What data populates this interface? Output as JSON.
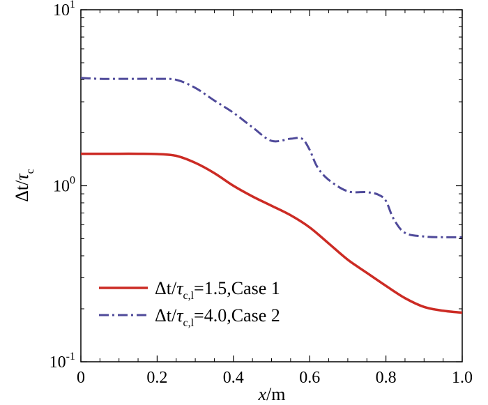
{
  "chart_data": {
    "type": "line",
    "title": "",
    "xlabel": {
      "var": "x",
      "unit": "/m"
    },
    "ylabel": {
      "num": "Δt",
      "sep": "/",
      "den": "τ",
      "den_sub": "c"
    },
    "xlim": [
      0,
      1.0
    ],
    "ylim": [
      0.1,
      10
    ],
    "yscale": "log",
    "x_ticks": [
      {
        "value": 0,
        "label": "0"
      },
      {
        "value": 0.2,
        "label": "0.2"
      },
      {
        "value": 0.4,
        "label": "0.4"
      },
      {
        "value": 0.6,
        "label": "0.6"
      },
      {
        "value": 0.8,
        "label": "0.8"
      },
      {
        "value": 1.0,
        "label": "1.0"
      }
    ],
    "y_ticks": [
      {
        "value": 0.1,
        "base": "10",
        "exp": "-1"
      },
      {
        "value": 1,
        "base": "10",
        "exp": "0"
      },
      {
        "value": 10,
        "base": "10",
        "exp": "1"
      }
    ],
    "legend_position": "bottom-left",
    "series": [
      {
        "name": "Δt/τc,l=1.5,Case 1",
        "legend": {
          "num": "Δt",
          "sep": "/",
          "den": "τ",
          "den_sub": "c,l",
          "rest": "=1.5,Case 1"
        },
        "color": "#cc2b24",
        "style": "solid",
        "points": [
          [
            0,
            1.52
          ],
          [
            0.05,
            1.52
          ],
          [
            0.1,
            1.52
          ],
          [
            0.15,
            1.52
          ],
          [
            0.2,
            1.515
          ],
          [
            0.25,
            1.48
          ],
          [
            0.3,
            1.35
          ],
          [
            0.35,
            1.18
          ],
          [
            0.4,
            1.0
          ],
          [
            0.45,
            0.87
          ],
          [
            0.5,
            0.77
          ],
          [
            0.55,
            0.68
          ],
          [
            0.6,
            0.58
          ],
          [
            0.65,
            0.47
          ],
          [
            0.7,
            0.38
          ],
          [
            0.75,
            0.32
          ],
          [
            0.8,
            0.27
          ],
          [
            0.85,
            0.23
          ],
          [
            0.9,
            0.205
          ],
          [
            0.95,
            0.195
          ],
          [
            1.0,
            0.19
          ]
        ]
      },
      {
        "name": "Δt/τc,l=4.0,Case 2",
        "legend": {
          "num": "Δt",
          "sep": "/",
          "den": "τ",
          "den_sub": "c,l",
          "rest": "=4.0,Case 2"
        },
        "color": "#4f4a9a",
        "style": "dashdot",
        "points": [
          [
            0,
            4.1
          ],
          [
            0.05,
            4.05
          ],
          [
            0.1,
            4.05
          ],
          [
            0.15,
            4.05
          ],
          [
            0.2,
            4.05
          ],
          [
            0.25,
            4.0
          ],
          [
            0.3,
            3.6
          ],
          [
            0.35,
            3.05
          ],
          [
            0.4,
            2.6
          ],
          [
            0.45,
            2.15
          ],
          [
            0.5,
            1.8
          ],
          [
            0.55,
            1.85
          ],
          [
            0.58,
            1.85
          ],
          [
            0.6,
            1.6
          ],
          [
            0.62,
            1.28
          ],
          [
            0.65,
            1.08
          ],
          [
            0.7,
            0.93
          ],
          [
            0.75,
            0.92
          ],
          [
            0.78,
            0.89
          ],
          [
            0.8,
            0.82
          ],
          [
            0.82,
            0.65
          ],
          [
            0.85,
            0.54
          ],
          [
            0.9,
            0.515
          ],
          [
            0.95,
            0.51
          ],
          [
            1.0,
            0.51
          ]
        ]
      }
    ]
  }
}
